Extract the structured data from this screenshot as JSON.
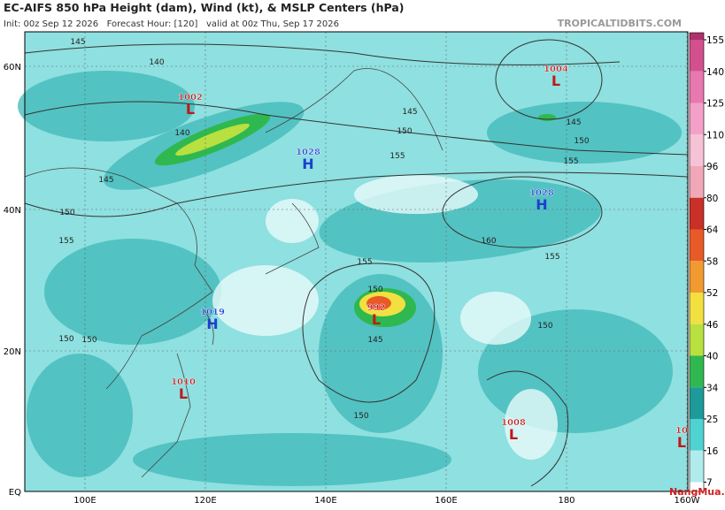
{
  "header": {
    "title": "EC-AIFS 850 hPa Height (dam), Wind (kt), & MSLP Centers (hPa)",
    "subtitle": "Init: 00z Sep 12 2026   Forecast Hour: [120]   valid at 00z Thu, Sep 17 2026",
    "credit": "TROPICALTIDBITS.COM"
  },
  "map": {
    "lat_labels": [
      "60N",
      "40N",
      "20N",
      "EQ"
    ],
    "lon_labels": [
      "100E",
      "120E",
      "140E",
      "160E",
      "180",
      "160W"
    ],
    "centers": [
      {
        "value": "1002",
        "symbol": "L"
      },
      {
        "value": "1028",
        "symbol": "H"
      },
      {
        "value": "1004",
        "symbol": "L"
      },
      {
        "value": "1028",
        "symbol": "H"
      },
      {
        "value": "1019",
        "symbol": "H"
      },
      {
        "value": "992",
        "symbol": "L"
      },
      {
        "value": "1010",
        "symbol": "L"
      },
      {
        "value": "1008",
        "symbol": "L"
      },
      {
        "value": "10",
        "symbol": "L"
      }
    ],
    "contour_labels": [
      "145",
      "140",
      "140",
      "145",
      "150",
      "155",
      "150",
      "150",
      "145",
      "150",
      "155",
      "145",
      "150",
      "155",
      "160",
      "155",
      "150",
      "145",
      "150",
      "150",
      "155"
    ]
  },
  "colorbar": {
    "labels": [
      155,
      140,
      125,
      110,
      96,
      80,
      64,
      58,
      52,
      46,
      40,
      34,
      25,
      16,
      7
    ],
    "colors": [
      "#b0306e",
      "#d2508e",
      "#e878b0",
      "#f4a0c8",
      "#f6c2d6",
      "#f0a8b8",
      "#c83028",
      "#e85a28",
      "#f09a30",
      "#f2e040",
      "#b8e040",
      "#30b850",
      "#1e9a9a",
      "#50d2d2",
      "#b0ecec",
      "#ffffff"
    ]
  },
  "watermark": "NangMua.VN"
}
